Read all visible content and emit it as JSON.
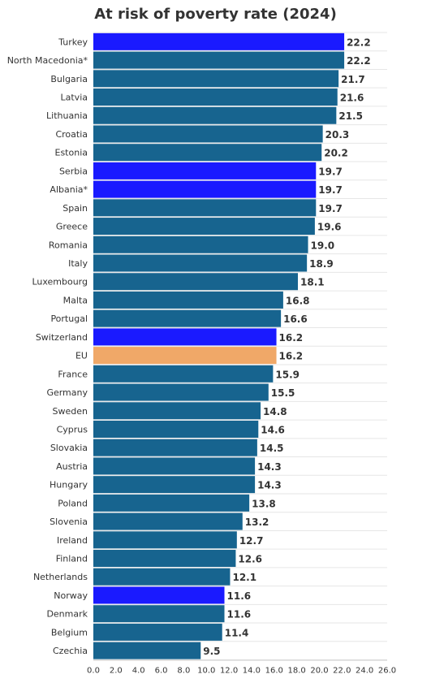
{
  "chart_data": {
    "type": "bar",
    "orientation": "horizontal",
    "title": "At risk of poverty rate (2024)",
    "xlabel": "",
    "ylabel": "",
    "xlim": [
      0,
      26
    ],
    "x_ticks": [
      "0.0",
      "2.0",
      "4.0",
      "6.0",
      "8.0",
      "10.0",
      "12.0",
      "14.0",
      "16.0",
      "18.0",
      "20.0",
      "22.0",
      "24.0",
      "26.0"
    ],
    "x_tick_values": [
      0,
      2,
      4,
      6,
      8,
      10,
      12,
      14,
      16,
      18,
      20,
      22,
      24,
      26
    ],
    "grid": true,
    "legend": "none",
    "categories": [
      "Turkey",
      "North Macedonia*",
      "Bulgaria",
      "Latvia",
      "Lithuania",
      "Croatia",
      "Estonia",
      "Serbia",
      "Albania*",
      "Spain",
      "Greece",
      "Romania",
      "Italy",
      "Luxembourg",
      "Malta",
      "Portugal",
      "Switzerland",
      "EU",
      "France",
      "Germany",
      "Sweden",
      "Cyprus",
      "Slovakia",
      "Austria",
      "Hungary",
      "Poland",
      "Slovenia",
      "Ireland",
      "Finland",
      "Netherlands",
      "Norway",
      "Denmark",
      "Belgium",
      "Czechia"
    ],
    "values": [
      22.2,
      22.2,
      21.7,
      21.6,
      21.5,
      20.3,
      20.2,
      19.7,
      19.7,
      19.7,
      19.6,
      19.0,
      18.9,
      18.1,
      16.8,
      16.6,
      16.2,
      16.2,
      15.9,
      15.5,
      14.8,
      14.6,
      14.5,
      14.3,
      14.3,
      13.8,
      13.2,
      12.7,
      12.6,
      12.1,
      11.6,
      11.6,
      11.4,
      9.5
    ],
    "value_labels": [
      "22.2",
      "22.2",
      "21.7",
      "21.6",
      "21.5",
      "20.3",
      "20.2",
      "19.7",
      "19.7",
      "19.7",
      "19.6",
      "19.0",
      "18.9",
      "18.1",
      "16.8",
      "16.6",
      "16.2",
      "16.2",
      "15.9",
      "15.5",
      "14.8",
      "14.6",
      "14.5",
      "14.3",
      "14.3",
      "13.8",
      "13.2",
      "12.7",
      "12.6",
      "12.1",
      "11.6",
      "11.6",
      "11.4",
      "9.5"
    ],
    "colors": {
      "default": "#17648f",
      "highlight": "#1a1aff",
      "eu": "#f0a868"
    },
    "bar_color_keys": [
      "highlight",
      "default",
      "default",
      "default",
      "default",
      "default",
      "default",
      "highlight",
      "highlight",
      "default",
      "default",
      "default",
      "default",
      "default",
      "default",
      "default",
      "highlight",
      "eu",
      "default",
      "default",
      "default",
      "default",
      "default",
      "default",
      "default",
      "default",
      "default",
      "default",
      "default",
      "default",
      "highlight",
      "default",
      "default",
      "default"
    ]
  }
}
